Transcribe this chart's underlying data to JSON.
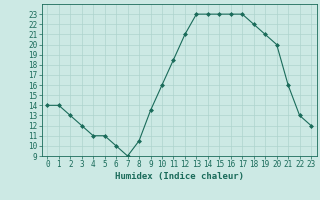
{
  "x": [
    0,
    1,
    2,
    3,
    4,
    5,
    6,
    7,
    8,
    9,
    10,
    11,
    12,
    13,
    14,
    15,
    16,
    17,
    18,
    19,
    20,
    21,
    22,
    23
  ],
  "y": [
    14,
    14,
    13,
    12,
    11,
    11,
    10,
    9,
    10.5,
    13.5,
    16,
    18.5,
    21,
    23,
    23,
    23,
    23,
    23,
    22,
    21,
    20,
    16,
    13,
    12
  ],
  "xlabel": "Humidex (Indice chaleur)",
  "ylim": [
    9,
    24
  ],
  "xlim": [
    -0.5,
    23.5
  ],
  "yticks": [
    9,
    10,
    11,
    12,
    13,
    14,
    15,
    16,
    17,
    18,
    19,
    20,
    21,
    22,
    23
  ],
  "xticks": [
    0,
    1,
    2,
    3,
    4,
    5,
    6,
    7,
    8,
    9,
    10,
    11,
    12,
    13,
    14,
    15,
    16,
    17,
    18,
    19,
    20,
    21,
    22,
    23
  ],
  "line_color": "#1a6b5a",
  "marker_color": "#1a6b5a",
  "bg_color": "#cce9e4",
  "grid_color": "#aed4ce",
  "tick_fontsize": 5.5,
  "xlabel_fontsize": 6.5
}
